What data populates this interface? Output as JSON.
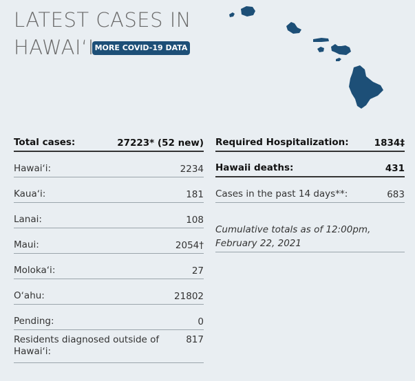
{
  "header": {
    "title_lines": [
      "LATEST CASES IN",
      "HAWAIʻI"
    ],
    "button": "MORE COVID-19 DATA"
  },
  "left_table": {
    "rows": [
      [
        "Total cases:",
        "27223* (52 new)"
      ],
      [
        "Hawaiʻi:",
        "2234"
      ],
      [
        "Kauaʻi:",
        "181"
      ],
      [
        "Lanai:",
        "108"
      ],
      [
        "Maui:",
        "2054†"
      ],
      [
        "Molokaʻi:",
        "27"
      ],
      [
        "Oʻahu:",
        "21802"
      ],
      [
        "Pending:",
        "0"
      ],
      [
        "Residents diagnosed outside of Hawaiʻi:",
        "817"
      ]
    ]
  },
  "right_table": {
    "rows": [
      [
        "Required Hospitalization:",
        "1834‡"
      ],
      [
        "Hawaii deaths:",
        "431"
      ],
      [
        "Cases in the past 14 days**:",
        "683"
      ]
    ]
  },
  "note": "Cumulative totals as of 12:00pm, February 22, 2021"
}
